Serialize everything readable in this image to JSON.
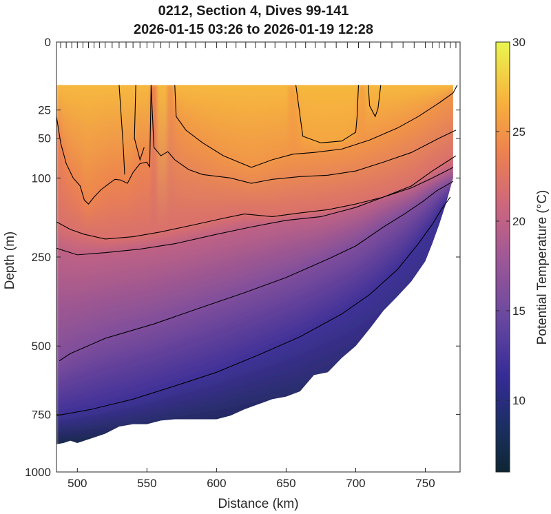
{
  "chart_data": {
    "type": "heatmap",
    "title": "0212, Section 4, Dives 99-141",
    "subtitle": "2026-01-15 03:26 to 2026-01-19 12:28",
    "xlabel": "Distance (km)",
    "ylabel": "Depth (m)",
    "xlim": [
      485,
      775
    ],
    "ylim": [
      1000,
      0
    ],
    "y_scale": "sqrt",
    "x_ticks": [
      500,
      550,
      600,
      650,
      700,
      750
    ],
    "y_ticks": [
      0,
      25,
      50,
      100,
      250,
      500,
      750,
      1000
    ],
    "colorbar": {
      "label": "Potential Temperature (°C)",
      "range": [
        6,
        30
      ],
      "ticks": [
        10,
        15,
        20,
        25,
        30
      ],
      "colormap": "thermal"
    },
    "dive_positions_km": [
      488,
      492,
      496,
      500,
      504,
      508,
      512,
      516,
      520,
      525,
      530,
      535,
      540,
      545,
      550,
      555,
      560,
      566,
      572,
      578,
      585,
      592,
      600,
      607,
      614,
      621,
      628,
      635,
      642,
      650,
      657,
      664,
      671,
      678,
      686,
      694,
      702,
      710,
      718,
      726,
      734,
      742,
      750,
      755,
      760,
      764,
      768,
      772
    ],
    "shallowest_depth_m": 10,
    "bottom_depth_profile": {
      "distance_km": [
        485,
        490,
        495,
        500,
        505,
        510,
        520,
        530,
        540,
        550,
        560,
        570,
        580,
        590,
        600,
        610,
        620,
        630,
        640,
        650,
        660,
        670,
        680,
        690,
        700,
        710,
        720,
        730,
        740,
        750,
        755,
        760,
        765,
        770
      ],
      "depth_m": [
        875,
        870,
        860,
        870,
        860,
        850,
        830,
        800,
        790,
        790,
        775,
        770,
        770,
        770,
        770,
        755,
        730,
        710,
        690,
        680,
        660,
        600,
        590,
        540,
        500,
        445,
        390,
        350,
        310,
        260,
        220,
        180,
        140,
        100
      ]
    },
    "contours": [
      {
        "level_c": 26,
        "segments": [
          {
            "distance_km": [
              657,
              662,
              675,
              690,
              700,
              701,
              702
            ],
            "depth_m": [
              10,
              48,
              55,
              53,
              44,
              30,
              10
            ]
          },
          {
            "distance_km": [
              709,
              710,
              714,
              716,
              718
            ],
            "depth_m": [
              10,
              22,
              30,
              24,
              10
            ]
          }
        ]
      },
      {
        "level_c": 25,
        "segments": [
          {
            "distance_km": [
              570,
              571,
              578,
              590,
              605,
              625,
              640,
              655,
              670,
              690,
              710,
              730,
              745,
              760,
              770,
              773
            ],
            "depth_m": [
              10,
              30,
              42,
              55,
              70,
              85,
              75,
              68,
              66,
              62,
              52,
              40,
              30,
              20,
              14,
              10
            ]
          }
        ]
      },
      {
        "level_c": 24,
        "segments": [
          {
            "distance_km": [
              530,
              533,
              534
            ],
            "depth_m": [
              10,
              60,
              95
            ]
          },
          {
            "distance_km": [
              542,
              541,
              545,
              548
            ],
            "depth_m": [
              10,
              50,
              75,
              60
            ]
          },
          {
            "distance_km": [
              553,
              555,
              560,
              565,
              570,
              580,
              590,
              610,
              625,
              640,
              660,
              680,
              700,
              720,
              740,
              760,
              772
            ],
            "depth_m": [
              10,
              60,
              70,
              65,
              75,
              88,
              95,
              100,
              108,
              102,
              98,
              96,
              90,
              78,
              66,
              50,
              42
            ]
          },
          {
            "distance_km": [
              485,
              488,
              492,
              497,
              502,
              505,
              508,
              512,
              517,
              523,
              527,
              531,
              536,
              540,
              545,
              550,
              552,
              553
            ],
            "depth_m": [
              30,
              55,
              80,
              100,
              112,
              135,
              142,
              130,
              118,
              108,
              102,
              103,
              108,
              92,
              80,
              78,
              85,
              10
            ]
          }
        ]
      },
      {
        "level_c": 22,
        "segments": [
          {
            "distance_km": [
              485,
              495,
              505,
              520,
              540,
              560,
              585,
              605,
              620,
              640,
              660,
              680,
              700,
              720,
              740,
              755,
              765,
              772
            ],
            "depth_m": [
              175,
              190,
              200,
              210,
              205,
              195,
              180,
              168,
              160,
              165,
              158,
              152,
              142,
              130,
              112,
              90,
              78,
              70
            ]
          }
        ]
      },
      {
        "level_c": 20,
        "segments": [
          {
            "distance_km": [
              485,
              500,
              520,
              545,
              570,
              600,
              625,
              650,
              675,
              700,
              720,
              740,
              755,
              763,
              770
            ],
            "depth_m": [
              230,
              245,
              240,
              232,
              220,
              200,
              185,
              172,
              165,
              148,
              130,
              115,
              100,
              92,
              85
            ]
          }
        ]
      },
      {
        "level_c": 16,
        "segments": [
          {
            "distance_km": [
              487,
              495,
              520,
              555,
              590,
              620,
              650,
              680,
              700,
              720,
              735,
              748,
              758,
              766,
              770
            ],
            "depth_m": [
              550,
              525,
              475,
              430,
              380,
              340,
              300,
              255,
              225,
              185,
              160,
              138,
              120,
              110,
              105
            ]
          }
        ]
      },
      {
        "level_c": 12,
        "segments": [
          {
            "distance_km": [
              485,
              510,
              540,
              570,
              600,
              630,
              660,
              690,
              710,
              730,
              745,
              755,
              762,
              768
            ],
            "depth_m": [
              755,
              730,
              690,
              640,
              590,
              530,
              470,
              400,
              345,
              280,
              220,
              180,
              150,
              130
            ]
          }
        ]
      }
    ]
  }
}
